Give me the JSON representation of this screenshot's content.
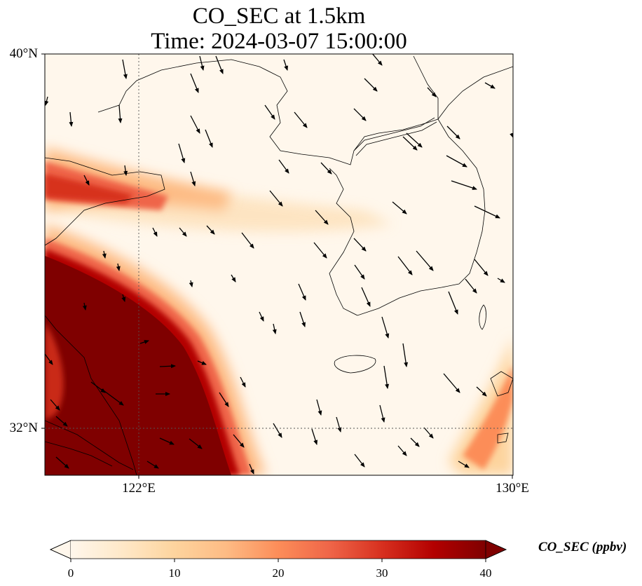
{
  "title": {
    "line1": "CO_SEC at 1.5km",
    "line2": "Time: 2024-03-07 15:00:00"
  },
  "map": {
    "variable": "CO_SEC",
    "level": "1.5km",
    "time": "2024-03-07 15:00:00",
    "extent": {
      "lon_min": 120,
      "lon_max": 130,
      "lat_min": 31,
      "lat_max": 40
    },
    "gridlines": {
      "lon": [
        122
      ],
      "lat": [
        32
      ],
      "style": "dotted"
    },
    "lat_ticks": [
      {
        "value": 40,
        "label": "40°N"
      },
      {
        "value": 32,
        "label": "32°N"
      }
    ],
    "lon_ticks": [
      {
        "value": 122,
        "label": "122°E"
      },
      {
        "value": 130,
        "label": "130°E"
      }
    ],
    "overlays": [
      "coastlines",
      "wind-vectors"
    ],
    "colormap": "OrRd",
    "colors": [
      "#fff7ec",
      "#fee8c8",
      "#fdd49e",
      "#fdbb84",
      "#fc8d59",
      "#ef6548",
      "#d7301f",
      "#b30000",
      "#7f0000"
    ]
  },
  "colorbar": {
    "label": "CO_SEC (ppbv)",
    "min": 0,
    "max": 40,
    "ticks": [
      0,
      10,
      20,
      30,
      40
    ],
    "extend": "both"
  }
}
